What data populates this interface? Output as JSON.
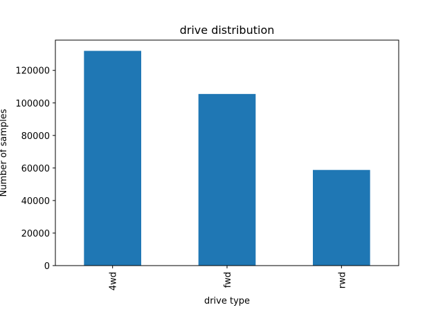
{
  "chart_data": {
    "type": "bar",
    "title": "drive distribution",
    "xlabel": "drive type",
    "ylabel": "Number of samples",
    "categories": [
      "4wd",
      "fwd",
      "rwd"
    ],
    "values": [
      132000,
      105500,
      58800
    ],
    "ylim": [
      0,
      138600
    ],
    "yticks": [
      0,
      20000,
      40000,
      60000,
      80000,
      100000,
      120000
    ],
    "ytick_labels": [
      "0",
      "20000",
      "40000",
      "60000",
      "80000",
      "100000",
      "120000"
    ],
    "bar_color": "#1f77b4",
    "grid": false,
    "legend": "none"
  }
}
